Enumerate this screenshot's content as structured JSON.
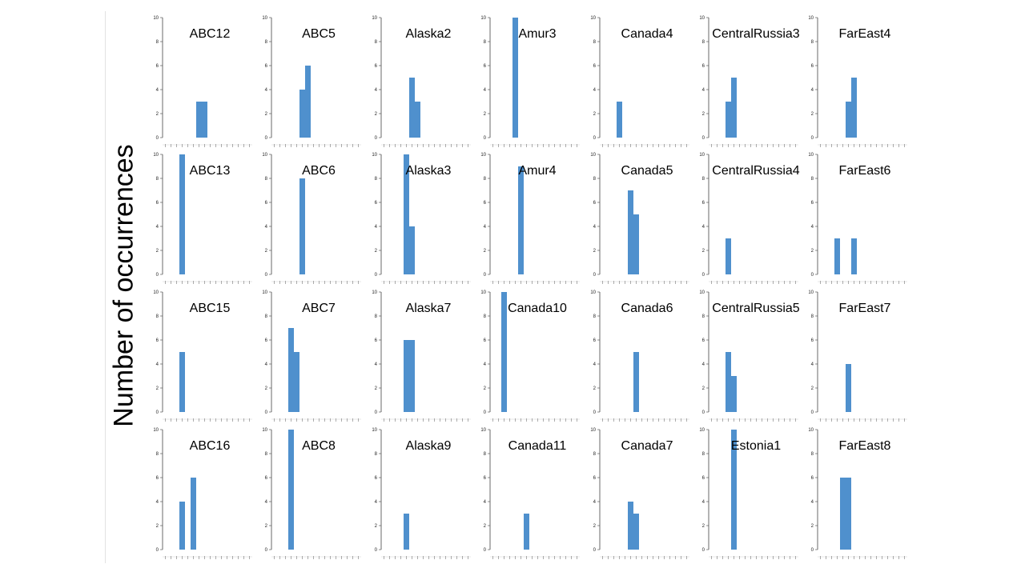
{
  "ylabel": "Number of occurrences",
  "chart_data": {
    "type": "bar",
    "layout": "small multiples, 4 rows x 7 columns",
    "bar_color": "#4f90cd",
    "ylim": [
      0,
      10
    ],
    "yticks": [
      0,
      2,
      4,
      6,
      8,
      10
    ],
    "xtick_count": 16,
    "ylabel": "Number of occurrences",
    "panels": [
      {
        "title": "ABC12",
        "bins": [
          6,
          7
        ],
        "values": [
          3,
          3
        ]
      },
      {
        "title": "ABC5",
        "bins": [
          5,
          6
        ],
        "values": [
          4,
          6
        ]
      },
      {
        "title": "Alaska2",
        "bins": [
          5,
          6
        ],
        "values": [
          5,
          3
        ]
      },
      {
        "title": "Amur3",
        "bins": [
          4
        ],
        "values": [
          10
        ]
      },
      {
        "title": "Canada4",
        "bins": [
          3
        ],
        "values": [
          3
        ]
      },
      {
        "title": "CentralRussia3",
        "bins": [
          3,
          4
        ],
        "values": [
          3,
          5
        ]
      },
      {
        "title": "FarEast4",
        "bins": [
          5,
          6
        ],
        "values": [
          3,
          5
        ]
      },
      {
        "title": "ABC13",
        "bins": [
          3
        ],
        "values": [
          10
        ]
      },
      {
        "title": "ABC6",
        "bins": [
          5
        ],
        "values": [
          8
        ]
      },
      {
        "title": "Alaska3",
        "bins": [
          4,
          5
        ],
        "values": [
          10,
          4
        ]
      },
      {
        "title": "Amur4",
        "bins": [
          5
        ],
        "values": [
          9
        ]
      },
      {
        "title": "Canada5",
        "bins": [
          5,
          6
        ],
        "values": [
          7,
          5
        ]
      },
      {
        "title": "CentralRussia4",
        "bins": [
          3
        ],
        "values": [
          3
        ]
      },
      {
        "title": "FarEast6",
        "bins": [
          3,
          6
        ],
        "values": [
          3,
          3
        ]
      },
      {
        "title": "ABC15",
        "bins": [
          3
        ],
        "values": [
          5
        ]
      },
      {
        "title": "ABC7",
        "bins": [
          3,
          4
        ],
        "values": [
          7,
          5
        ]
      },
      {
        "title": "Alaska7",
        "bins": [
          4,
          5
        ],
        "values": [
          6,
          6
        ]
      },
      {
        "title": "Canada10",
        "bins": [
          2
        ],
        "values": [
          10
        ]
      },
      {
        "title": "Canada6",
        "bins": [
          6
        ],
        "values": [
          5
        ]
      },
      {
        "title": "CentralRussia5",
        "bins": [
          3,
          4
        ],
        "values": [
          5,
          3
        ]
      },
      {
        "title": "FarEast7",
        "bins": [
          5
        ],
        "values": [
          4
        ]
      },
      {
        "title": "ABC16",
        "bins": [
          3,
          5
        ],
        "values": [
          4,
          6
        ]
      },
      {
        "title": "ABC8",
        "bins": [
          3
        ],
        "values": [
          10
        ]
      },
      {
        "title": "Alaska9",
        "bins": [
          4
        ],
        "values": [
          3
        ]
      },
      {
        "title": "Canada11",
        "bins": [
          6
        ],
        "values": [
          3
        ]
      },
      {
        "title": "Canada7",
        "bins": [
          5,
          6
        ],
        "values": [
          4,
          3
        ]
      },
      {
        "title": "Estonia1",
        "bins": [
          4
        ],
        "values": [
          10
        ]
      },
      {
        "title": "FarEast8",
        "bins": [
          4,
          5
        ],
        "values": [
          6,
          6
        ]
      }
    ]
  }
}
